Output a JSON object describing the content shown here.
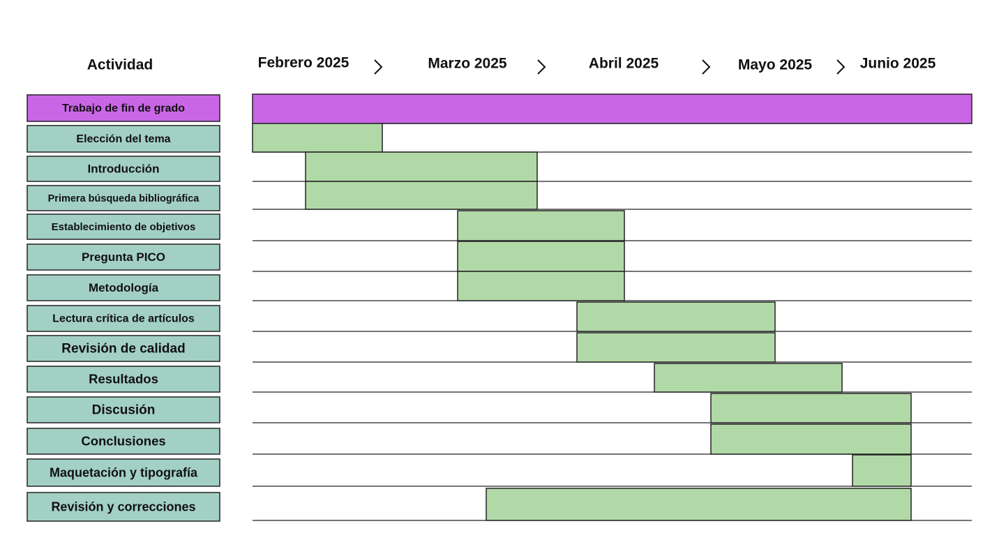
{
  "header": {
    "activity": "Actividad",
    "months": [
      "Febrero 2025",
      "Marzo 2025",
      "Abril 2025",
      "Mayo 2025",
      "Junio 2025"
    ]
  },
  "tasks": [
    "Trabajo de fin de grado",
    "Elección del tema",
    "Introducción",
    "Primera búsqueda  bibliográfica",
    "Establecimiento de objetivos",
    "Pregunta PICO",
    "Metodología",
    "Lectura crítica de artículos",
    "Revisión de calidad",
    "Resultados",
    "Discusión",
    "Conclusiones",
    "Maquetación y tipografía",
    "Revisión y correcciones"
  ]
}
